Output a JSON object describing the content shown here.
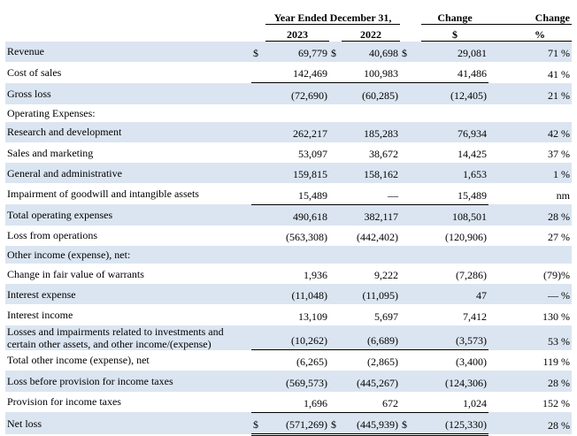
{
  "header": {
    "period": "Year Ended December 31,",
    "change_amount": "Change",
    "change_percent": "Change",
    "years": [
      "2023",
      "2022"
    ],
    "amount_unit": "$",
    "percent_unit": "%"
  },
  "rows": [
    {
      "label": "Revenue",
      "currency": "$",
      "values": [
        "69,779",
        "40,698",
        "29,081",
        "71 %"
      ]
    },
    {
      "label": "Cost of sales",
      "values": [
        "142,469",
        "100,983",
        "41,486",
        "41 %"
      ]
    },
    {
      "label": "Gross loss",
      "values": [
        "(72,690)",
        "(60,285)",
        "(12,405)",
        "21 %"
      ]
    },
    {
      "label": "Operating Expenses:"
    },
    {
      "label": "Research and development",
      "values": [
        "262,217",
        "185,283",
        "76,934",
        "42 %"
      ]
    },
    {
      "label": "Sales and marketing",
      "values": [
        "53,097",
        "38,672",
        "14,425",
        "37 %"
      ]
    },
    {
      "label": "General and administrative",
      "values": [
        "159,815",
        "158,162",
        "1,653",
        "1 %"
      ]
    },
    {
      "label": "Impairment of goodwill and intangible assets",
      "values": [
        "15,489",
        "—",
        "15,489",
        "nm"
      ]
    },
    {
      "label": "Total operating expenses",
      "values": [
        "490,618",
        "382,117",
        "108,501",
        "28 %"
      ]
    },
    {
      "label": "Loss from operations",
      "values": [
        "(563,308)",
        "(442,402)",
        "(120,906)",
        "27 %"
      ]
    },
    {
      "label": "Other income (expense), net:"
    },
    {
      "label": "Change in fair value of warrants",
      "values": [
        "1,936",
        "9,222",
        "(7,286)",
        "(79)%"
      ]
    },
    {
      "label": "Interest expense",
      "values": [
        "(11,048)",
        "(11,095)",
        "47",
        "— %"
      ]
    },
    {
      "label": "Interest income",
      "values": [
        "13,109",
        "5,697",
        "7,412",
        "130 %"
      ]
    },
    {
      "label": "Losses and impairments related to investments and certain other assets, and other income/(expense)",
      "values": [
        "(10,262)",
        "(6,689)",
        "(3,573)",
        "53 %"
      ]
    },
    {
      "label": "Total other income (expense), net",
      "values": [
        "(6,265)",
        "(2,865)",
        "(3,400)",
        "119 %"
      ]
    },
    {
      "label": "Loss before provision for income taxes",
      "values": [
        "(569,573)",
        "(445,267)",
        "(124,306)",
        "28 %"
      ]
    },
    {
      "label": "Provision for income taxes",
      "values": [
        "1,696",
        "672",
        "1,024",
        "152 %"
      ]
    },
    {
      "label": "Net loss",
      "currency": "$",
      "values": [
        "(571,269)",
        "(445,939)",
        "(125,330)",
        "28 %"
      ]
    }
  ]
}
